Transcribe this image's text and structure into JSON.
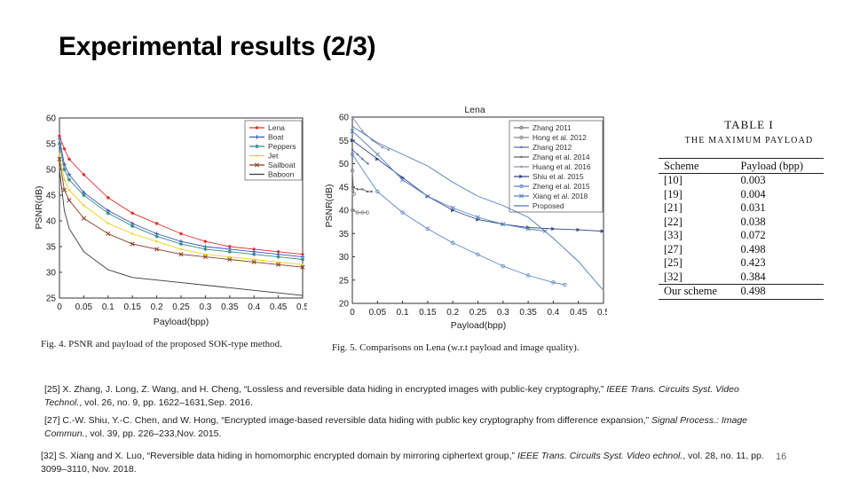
{
  "slide": {
    "title": "Experimental results (2/3)",
    "page_number": "16"
  },
  "fig4": {
    "caption": "Fig. 4.    PSNR and payload of the proposed SOK-type method.",
    "ylabel": "PSNR(dB)",
    "xlabel": "Payload(bpp)",
    "xticks": [
      "0",
      "0.05",
      "0.1",
      "0.15",
      "0.2",
      "0.25",
      "0.3",
      "0.35",
      "0.4",
      "0.45",
      "0.5"
    ],
    "yticks": [
      "25",
      "30",
      "35",
      "40",
      "45",
      "50",
      "55",
      "60"
    ]
  },
  "fig5": {
    "title": "Lena",
    "caption": "Fig. 5.    Comparisons on Lena (w.r.t payload and image quality).",
    "ylabel": "PSNR(dB)",
    "xlabel": "Payload(bpp)",
    "xticks": [
      "0",
      "0.05",
      "0.1",
      "0.15",
      "0.2",
      "0.25",
      "0.3",
      "0.35",
      "0.4",
      "0.45",
      "0.5"
    ],
    "yticks": [
      "20",
      "25",
      "30",
      "35",
      "40",
      "45",
      "50",
      "55",
      "60"
    ]
  },
  "table": {
    "number": "TABLE I",
    "caption": "THE MAXIMUM PAYLOAD",
    "headers": [
      "Scheme",
      "Payload (bpp)"
    ],
    "rows": [
      [
        "[10]",
        "0.003"
      ],
      [
        "[19]",
        "0.004"
      ],
      [
        "[21]",
        "0.031"
      ],
      [
        "[22]",
        "0.038"
      ],
      [
        "[33]",
        "0.072"
      ],
      [
        "[27]",
        "0.498"
      ],
      [
        "[25]",
        "0.423"
      ],
      [
        "[32]",
        "0.384"
      ]
    ],
    "last_row": [
      "Our scheme",
      "0.498"
    ]
  },
  "references": {
    "ref25": {
      "pre": "[25] X. Zhang, J. Long, Z. Wang, and H. Cheng, “Lossless and reversible data hiding in encrypted images with public-key cryptography,” ",
      "journal": "IEEE Trans. Circuits Syst. Video Technol.",
      "post": ", vol. 26, no. 9, pp. 1622–1631,Sep. 2016."
    },
    "ref27": {
      "pre": "[27] C.-W. Shiu, Y.-C. Chen, and W. Hong, “Encrypted image-based reversible data hiding with public key cryptography from difference expansion,” ",
      "journal": "Signal Process.: Image Commun.",
      "post": ", vol. 39, pp. 226–233,Nov. 2015."
    },
    "ref32": {
      "pre": "[32] S. Xiang and X. Luo, “Reversible data hiding in homomorphic encrypted domain by mirroring ciphertext group,” ",
      "journal": "IEEE Trans. Circuits Syst. Video echnol.",
      "post": ", vol. 28, no. 11, pp. 3099–3110, Nov. 2018."
    }
  },
  "chart_data": [
    {
      "type": "line",
      "name": "fig4",
      "xlabel": "Payload(bpp)",
      "ylabel": "PSNR(dB)",
      "xlim": [
        0,
        0.5
      ],
      "ylim": [
        25,
        60
      ],
      "grid": false,
      "legend_position": "top-right",
      "x": [
        0,
        0.01,
        0.02,
        0.05,
        0.1,
        0.15,
        0.2,
        0.25,
        0.3,
        0.35,
        0.4,
        0.45,
        0.5
      ],
      "series": [
        {
          "name": "Lena",
          "color": "#e0302a",
          "marker": "diamond",
          "values": [
            56.5,
            54,
            52,
            49,
            44.5,
            41.5,
            39.5,
            37.5,
            36,
            35,
            34.5,
            34,
            33.5
          ]
        },
        {
          "name": "Boat",
          "color": "#3a56b8",
          "marker": "plus",
          "values": [
            56,
            51,
            49,
            45.5,
            42,
            39.5,
            37.5,
            36,
            35,
            34.5,
            34,
            33.5,
            33
          ]
        },
        {
          "name": "Peppers",
          "color": "#2e8a8a",
          "marker": "star",
          "values": [
            55,
            50,
            48,
            45,
            41.5,
            39,
            37,
            35.5,
            34.5,
            34,
            33.5,
            33,
            32.5
          ]
        },
        {
          "name": "Jet",
          "color": "#e8d21a",
          "marker": "point",
          "values": [
            53,
            48,
            46,
            43,
            39.5,
            37.5,
            36,
            34.5,
            33.5,
            33,
            32.5,
            32,
            31.5
          ]
        },
        {
          "name": "Sailboat",
          "color": "#8a3a22",
          "marker": "cross",
          "values": [
            52,
            46,
            44,
            40.5,
            37.5,
            35.5,
            34.5,
            33.5,
            33,
            32.5,
            32,
            31.5,
            31
          ]
        },
        {
          "name": "Baboon",
          "color": "#3a3a3a",
          "marker": "none",
          "values": [
            50,
            42,
            38.5,
            34,
            30.5,
            29,
            28.5,
            28,
            27.5,
            27,
            26.5,
            26,
            25.5
          ]
        }
      ]
    },
    {
      "type": "line",
      "name": "fig5",
      "title": "Lena",
      "xlabel": "Payload(bpp)",
      "ylabel": "PSNR(dB)",
      "xlim": [
        0,
        0.5
      ],
      "ylim": [
        20,
        60
      ],
      "grid": false,
      "legend_position": "top-right",
      "series": [
        {
          "name": "Zhang 2011",
          "color": "#777777",
          "marker": "circle",
          "x": [
            0.0,
            0.003
          ],
          "y": [
            48.5,
            43.5
          ]
        },
        {
          "name": "Hong et al. 2012",
          "color": "#888888",
          "marker": "circle",
          "x": [
            0.0,
            0.01,
            0.02,
            0.03
          ],
          "y": [
            40,
            39.5,
            39.5,
            39.5
          ]
        },
        {
          "name": "Zhang 2012",
          "color": "#5a6fa8",
          "marker": "point",
          "x": [
            0.0,
            0.01,
            0.02,
            0.031
          ],
          "y": [
            53,
            52,
            51,
            50
          ]
        },
        {
          "name": "Zhang et al. 2014",
          "color": "#666666",
          "marker": "point",
          "x": [
            0.0,
            0.01,
            0.02,
            0.03,
            0.038
          ],
          "y": [
            45,
            44.5,
            44.5,
            44,
            44
          ]
        },
        {
          "name": "Huang et al. 2016",
          "color": "#8a90a8",
          "marker": "point",
          "x": [
            0.0,
            0.02,
            0.04,
            0.06,
            0.072
          ],
          "y": [
            60,
            57,
            55,
            53.5,
            53
          ]
        },
        {
          "name": "Shiu et al. 2015",
          "color": "#334a8a",
          "marker": "triangle",
          "x": [
            0.0,
            0.05,
            0.1,
            0.15,
            0.2,
            0.25,
            0.3,
            0.35,
            0.4,
            0.45,
            0.498
          ],
          "y": [
            55,
            51,
            47,
            43,
            40,
            38,
            37,
            36.3,
            36,
            35.8,
            35.5
          ]
        },
        {
          "name": "Zheng et al. 2015",
          "color": "#5a86c8",
          "marker": "circle",
          "x": [
            0.0,
            0.05,
            0.1,
            0.15,
            0.2,
            0.25,
            0.3,
            0.35,
            0.4,
            0.423
          ],
          "y": [
            52,
            44,
            39.5,
            36,
            33,
            30.5,
            28,
            26,
            24.5,
            24
          ]
        },
        {
          "name": "Xiang et al. 2018",
          "color": "#5c84c0",
          "marker": "x",
          "x": [
            0.0,
            0.05,
            0.1,
            0.15,
            0.2,
            0.25,
            0.3,
            0.35,
            0.384
          ],
          "y": [
            57,
            52,
            46.5,
            43,
            40.5,
            38.5,
            37,
            36,
            35.5
          ]
        },
        {
          "name": "Proposed",
          "color": "#4a7ab8",
          "marker": "none",
          "x": [
            0.0,
            0.05,
            0.1,
            0.15,
            0.2,
            0.25,
            0.3,
            0.35,
            0.4,
            0.45,
            0.498
          ],
          "y": [
            58,
            54.5,
            52,
            49.5,
            46,
            43,
            41,
            38.5,
            34,
            29,
            23
          ]
        }
      ]
    }
  ]
}
